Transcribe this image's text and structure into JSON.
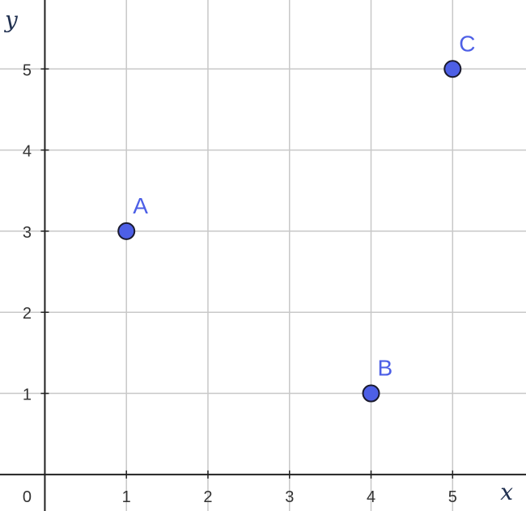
{
  "chart_data": {
    "type": "scatter",
    "xlabel": "x",
    "ylabel": "y",
    "origin_label": "0",
    "x_ticks": [
      "1",
      "2",
      "3",
      "4",
      "5"
    ],
    "y_ticks": [
      "1",
      "2",
      "3",
      "4",
      "5"
    ],
    "xlim": [
      -0.55,
      5.9
    ],
    "ylim": [
      -0.45,
      5.85
    ],
    "grid": true,
    "points": [
      {
        "label": "A",
        "x": 1,
        "y": 3
      },
      {
        "label": "B",
        "x": 4,
        "y": 1
      },
      {
        "label": "C",
        "x": 5,
        "y": 5
      }
    ],
    "colors": {
      "point_fill": "#4d5fe6",
      "point_stroke": "#1a1a2e",
      "label": "#4d5fe6",
      "grid": "#c8c8c8",
      "axis": "#222222"
    }
  }
}
